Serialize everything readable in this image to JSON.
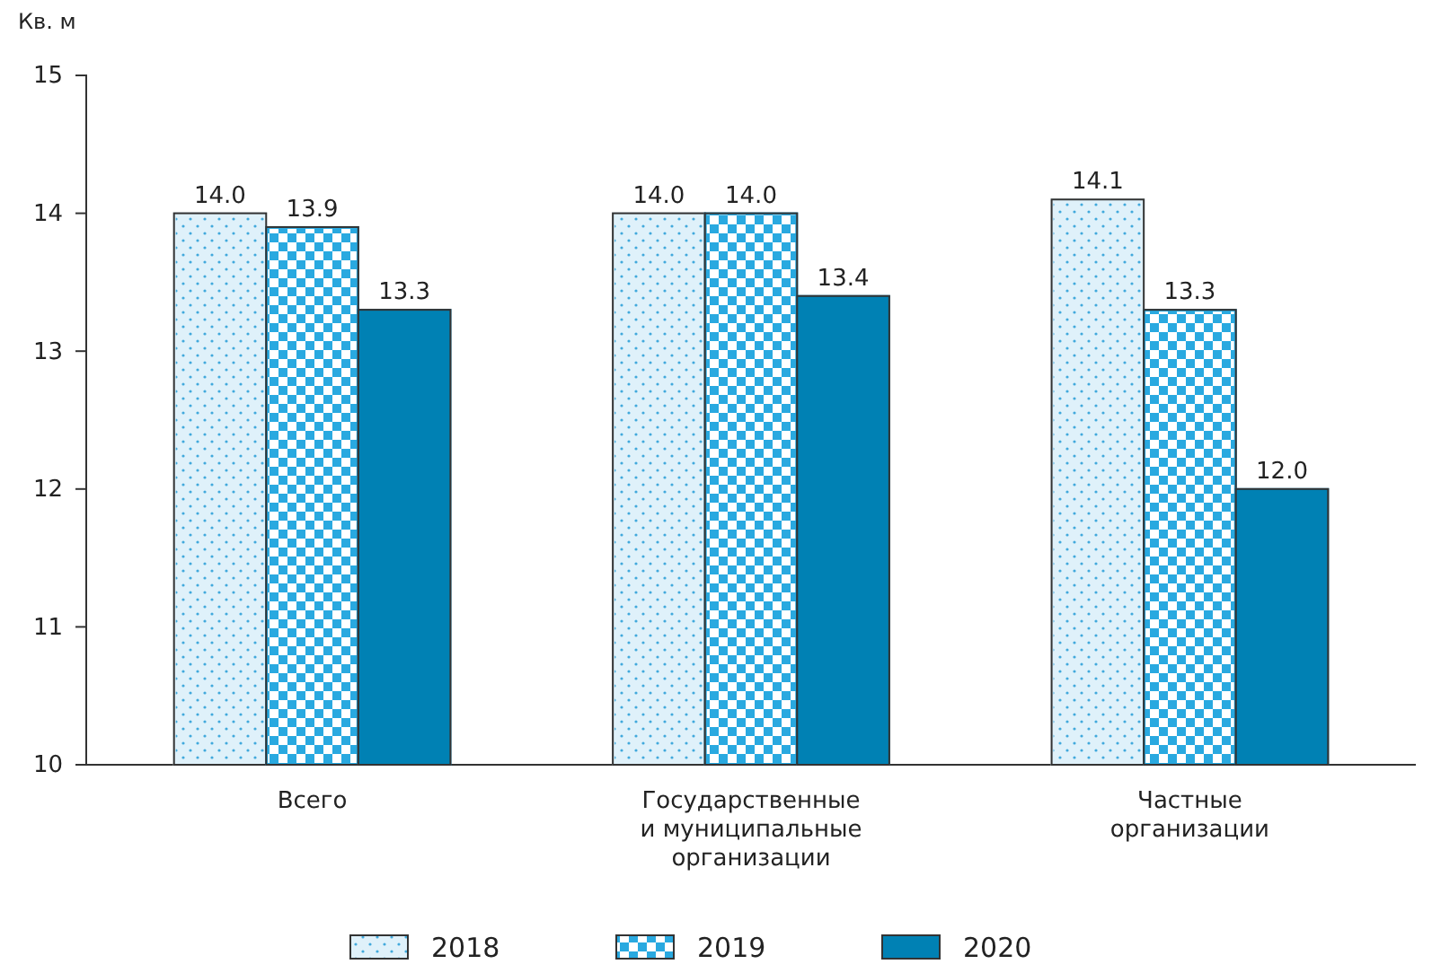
{
  "chart_data": {
    "type": "bar",
    "ylabel": "Кв. м",
    "categories": [
      "Всего",
      "Государственные\nи муниципальные\nорганизации",
      "Частные\nорганизации"
    ],
    "series": [
      {
        "name": "2018",
        "color": "#dff1fa",
        "values": [
          14.0,
          14.0,
          14.1
        ],
        "value_labels": [
          "14.0",
          "14.0",
          "14.1"
        ]
      },
      {
        "name": "2019",
        "color": "#29a9e0",
        "values": [
          13.9,
          14.0,
          13.3
        ],
        "value_labels": [
          "13.9",
          "14.0",
          "13.3"
        ]
      },
      {
        "name": "2020",
        "color": "#0081b4",
        "values": [
          13.3,
          13.4,
          12.0
        ],
        "value_labels": [
          "13.3",
          "13.4",
          "12.0"
        ]
      }
    ],
    "ylim": [
      10,
      15
    ],
    "yticks": [
      10,
      11,
      12,
      13,
      14,
      15
    ],
    "grid": false,
    "legend": "bottom"
  }
}
